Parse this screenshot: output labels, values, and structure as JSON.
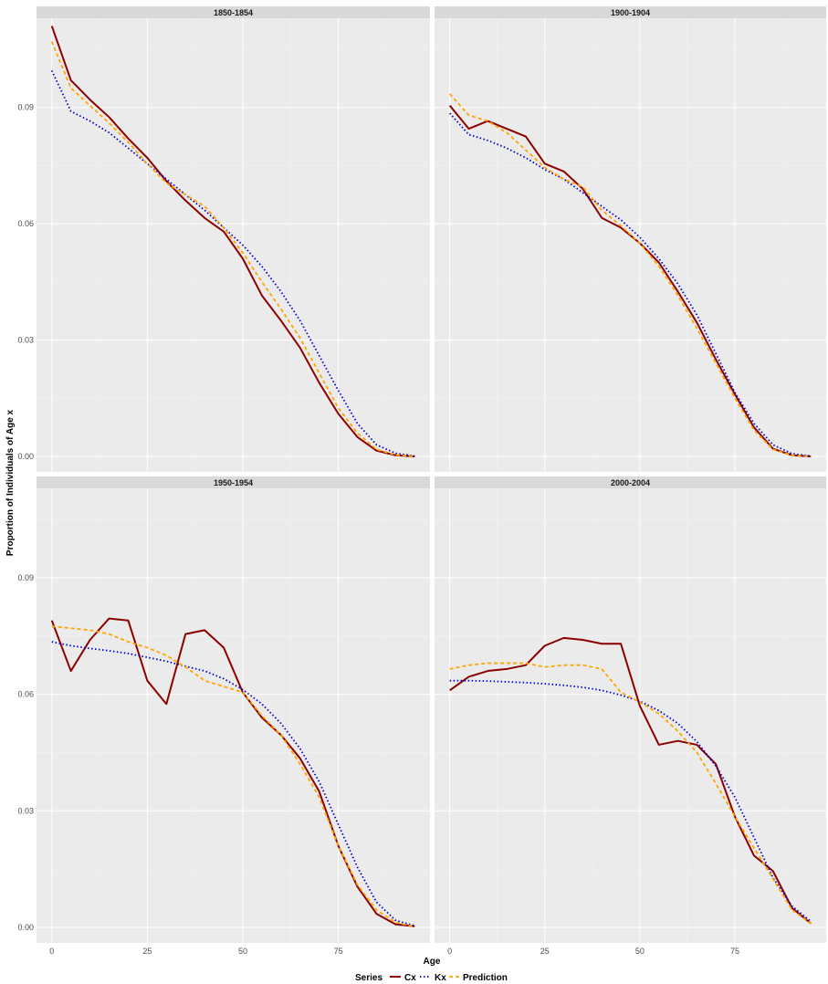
{
  "chart_data": {
    "type": "line",
    "layout": "facet-2x2",
    "xlabel": "Age",
    "ylabel": "Proportion of Individuals of Age x",
    "xlim": [
      -4,
      99
    ],
    "ylim": [
      -0.004,
      0.113
    ],
    "x_ticks": [
      0,
      25,
      50,
      75
    ],
    "x_tick_labels": [
      "0",
      "25",
      "50",
      "75"
    ],
    "y_ticks": [
      0,
      0.03,
      0.06,
      0.09
    ],
    "y_tick_labels": [
      "0.00",
      "0.03",
      "0.06",
      "0.09"
    ],
    "grid": true,
    "legend": {
      "title": "Series",
      "position": "bottom",
      "entries": [
        "Cx",
        "Kx",
        "Prediction"
      ]
    },
    "colors": {
      "Cx": "#8b0000",
      "Kx": "#0000cd",
      "Prediction": "#ffa500",
      "panel_background": "#ebebeb",
      "strip_background": "#d9d9d9",
      "grid": "#ffffff"
    },
    "series_styles": {
      "Cx": "solid",
      "Kx": "dotted",
      "Prediction": "dashed"
    },
    "x": [
      0,
      5,
      10,
      15,
      20,
      25,
      30,
      35,
      40,
      45,
      50,
      55,
      60,
      65,
      70,
      75,
      80,
      85,
      90,
      95
    ],
    "panels": [
      {
        "title": "1850-1854",
        "series": [
          {
            "name": "Cx",
            "values": [
              0.111,
              0.097,
              0.092,
              0.0875,
              0.082,
              0.077,
              0.071,
              0.066,
              0.0615,
              0.058,
              0.051,
              0.0415,
              0.035,
              0.028,
              0.019,
              0.011,
              0.005,
              0.0015,
              0.0003,
              0.0
            ]
          },
          {
            "name": "Kx",
            "values": [
              0.0995,
              0.089,
              0.0865,
              0.0835,
              0.0795,
              0.0755,
              0.0715,
              0.0675,
              0.0635,
              0.059,
              0.0545,
              0.049,
              0.0425,
              0.035,
              0.026,
              0.017,
              0.0085,
              0.003,
              0.0008,
              0.0001
            ]
          },
          {
            "name": "Prediction",
            "values": [
              0.107,
              0.095,
              0.0905,
              0.086,
              0.081,
              0.0755,
              0.0705,
              0.0675,
              0.0645,
              0.059,
              0.0525,
              0.045,
              0.038,
              0.0305,
              0.0215,
              0.0125,
              0.006,
              0.0018,
              0.0004,
              0.0
            ]
          }
        ]
      },
      {
        "title": "1900-1904",
        "series": [
          {
            "name": "Cx",
            "values": [
              0.0905,
              0.0845,
              0.0865,
              0.0845,
              0.0825,
              0.0755,
              0.0735,
              0.069,
              0.0615,
              0.059,
              0.055,
              0.05,
              0.0425,
              0.0345,
              0.025,
              0.016,
              0.0075,
              0.002,
              0.0003,
              0.0
            ]
          },
          {
            "name": "Kx",
            "values": [
              0.0885,
              0.083,
              0.0815,
              0.0795,
              0.077,
              0.074,
              0.0715,
              0.068,
              0.0645,
              0.061,
              0.0565,
              0.051,
              0.0445,
              0.0365,
              0.0265,
              0.0165,
              0.0085,
              0.003,
              0.0007,
              0.0001
            ]
          },
          {
            "name": "Prediction",
            "values": [
              0.0935,
              0.088,
              0.0865,
              0.0835,
              0.079,
              0.0745,
              0.0715,
              0.0695,
              0.0635,
              0.0595,
              0.055,
              0.049,
              0.0415,
              0.033,
              0.024,
              0.015,
              0.0068,
              0.0018,
              0.0003,
              0.0
            ]
          }
        ]
      },
      {
        "title": "1950-1954",
        "series": [
          {
            "name": "Cx",
            "values": [
              0.079,
              0.066,
              0.074,
              0.0795,
              0.079,
              0.0635,
              0.0575,
              0.0755,
              0.0765,
              0.072,
              0.0605,
              0.054,
              0.0495,
              0.0435,
              0.035,
              0.021,
              0.0105,
              0.0035,
              0.0008,
              0.0003
            ]
          },
          {
            "name": "Kx",
            "values": [
              0.0735,
              0.0725,
              0.0718,
              0.0712,
              0.0705,
              0.0695,
              0.0685,
              0.0672,
              0.066,
              0.064,
              0.0612,
              0.0575,
              0.0525,
              0.046,
              0.0375,
              0.0265,
              0.0155,
              0.0065,
              0.0018,
              0.0004
            ]
          },
          {
            "name": "Prediction",
            "values": [
              0.0775,
              0.077,
              0.0765,
              0.0755,
              0.0735,
              0.072,
              0.07,
              0.067,
              0.0635,
              0.062,
              0.0605,
              0.0545,
              0.0495,
              0.042,
              0.0335,
              0.021,
              0.011,
              0.0045,
              0.0013,
              0.0002
            ]
          }
        ]
      },
      {
        "title": "2000-2004",
        "series": [
          {
            "name": "Cx",
            "values": [
              0.061,
              0.0645,
              0.066,
              0.0665,
              0.0675,
              0.0725,
              0.0745,
              0.074,
              0.073,
              0.073,
              0.057,
              0.047,
              0.048,
              0.047,
              0.042,
              0.0285,
              0.0185,
              0.0145,
              0.005,
              0.001
            ]
          },
          {
            "name": "Kx",
            "values": [
              0.0635,
              0.0635,
              0.0634,
              0.0632,
              0.063,
              0.0627,
              0.0623,
              0.0618,
              0.061,
              0.0598,
              0.0582,
              0.0558,
              0.0525,
              0.0478,
              0.0415,
              0.0335,
              0.0232,
              0.0128,
              0.0055,
              0.0015
            ]
          },
          {
            "name": "Prediction",
            "values": [
              0.0665,
              0.0675,
              0.068,
              0.068,
              0.068,
              0.067,
              0.0675,
              0.0675,
              0.0665,
              0.0605,
              0.058,
              0.055,
              0.0505,
              0.045,
              0.037,
              0.0285,
              0.0205,
              0.0125,
              0.0045,
              0.001
            ]
          }
        ]
      }
    ]
  }
}
